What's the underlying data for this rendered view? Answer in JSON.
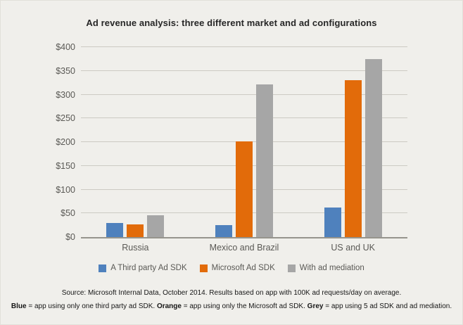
{
  "title": "Ad revenue analysis: three different market and ad configurations",
  "chart_data": {
    "type": "bar",
    "categories": [
      "Russia",
      "Mexico and Brazil",
      "US and UK"
    ],
    "series": [
      {
        "name": "A Third party Ad SDK",
        "color": "#4f81bd",
        "values": [
          30,
          25,
          62
        ]
      },
      {
        "name": "Microsoft Ad SDK",
        "color": "#e26b0a",
        "values": [
          27,
          201,
          330
        ]
      },
      {
        "name": "With ad mediation",
        "color": "#a6a6a6",
        "values": [
          46,
          321,
          375
        ]
      }
    ],
    "ylim": [
      0,
      400
    ],
    "ytick_step": 50,
    "ytick_labels": [
      "$0",
      "$50",
      "$100",
      "$150",
      "$200",
      "$250",
      "$300",
      "$350",
      "$400"
    ],
    "grid": true,
    "legend_position": "bottom"
  },
  "footer": {
    "source": "Source: Microsoft Internal Data, October 2014. Results based on app with 100K ad requests/day on average.",
    "key_parts": [
      {
        "bold": "Blue",
        "text": " = app using only one third party ad SDK. "
      },
      {
        "bold": "Orange",
        "text": " = app using only the Microsoft ad SDK. "
      },
      {
        "bold": "Grey",
        "text": " = app using 5 ad SDK and ad mediation."
      }
    ]
  }
}
